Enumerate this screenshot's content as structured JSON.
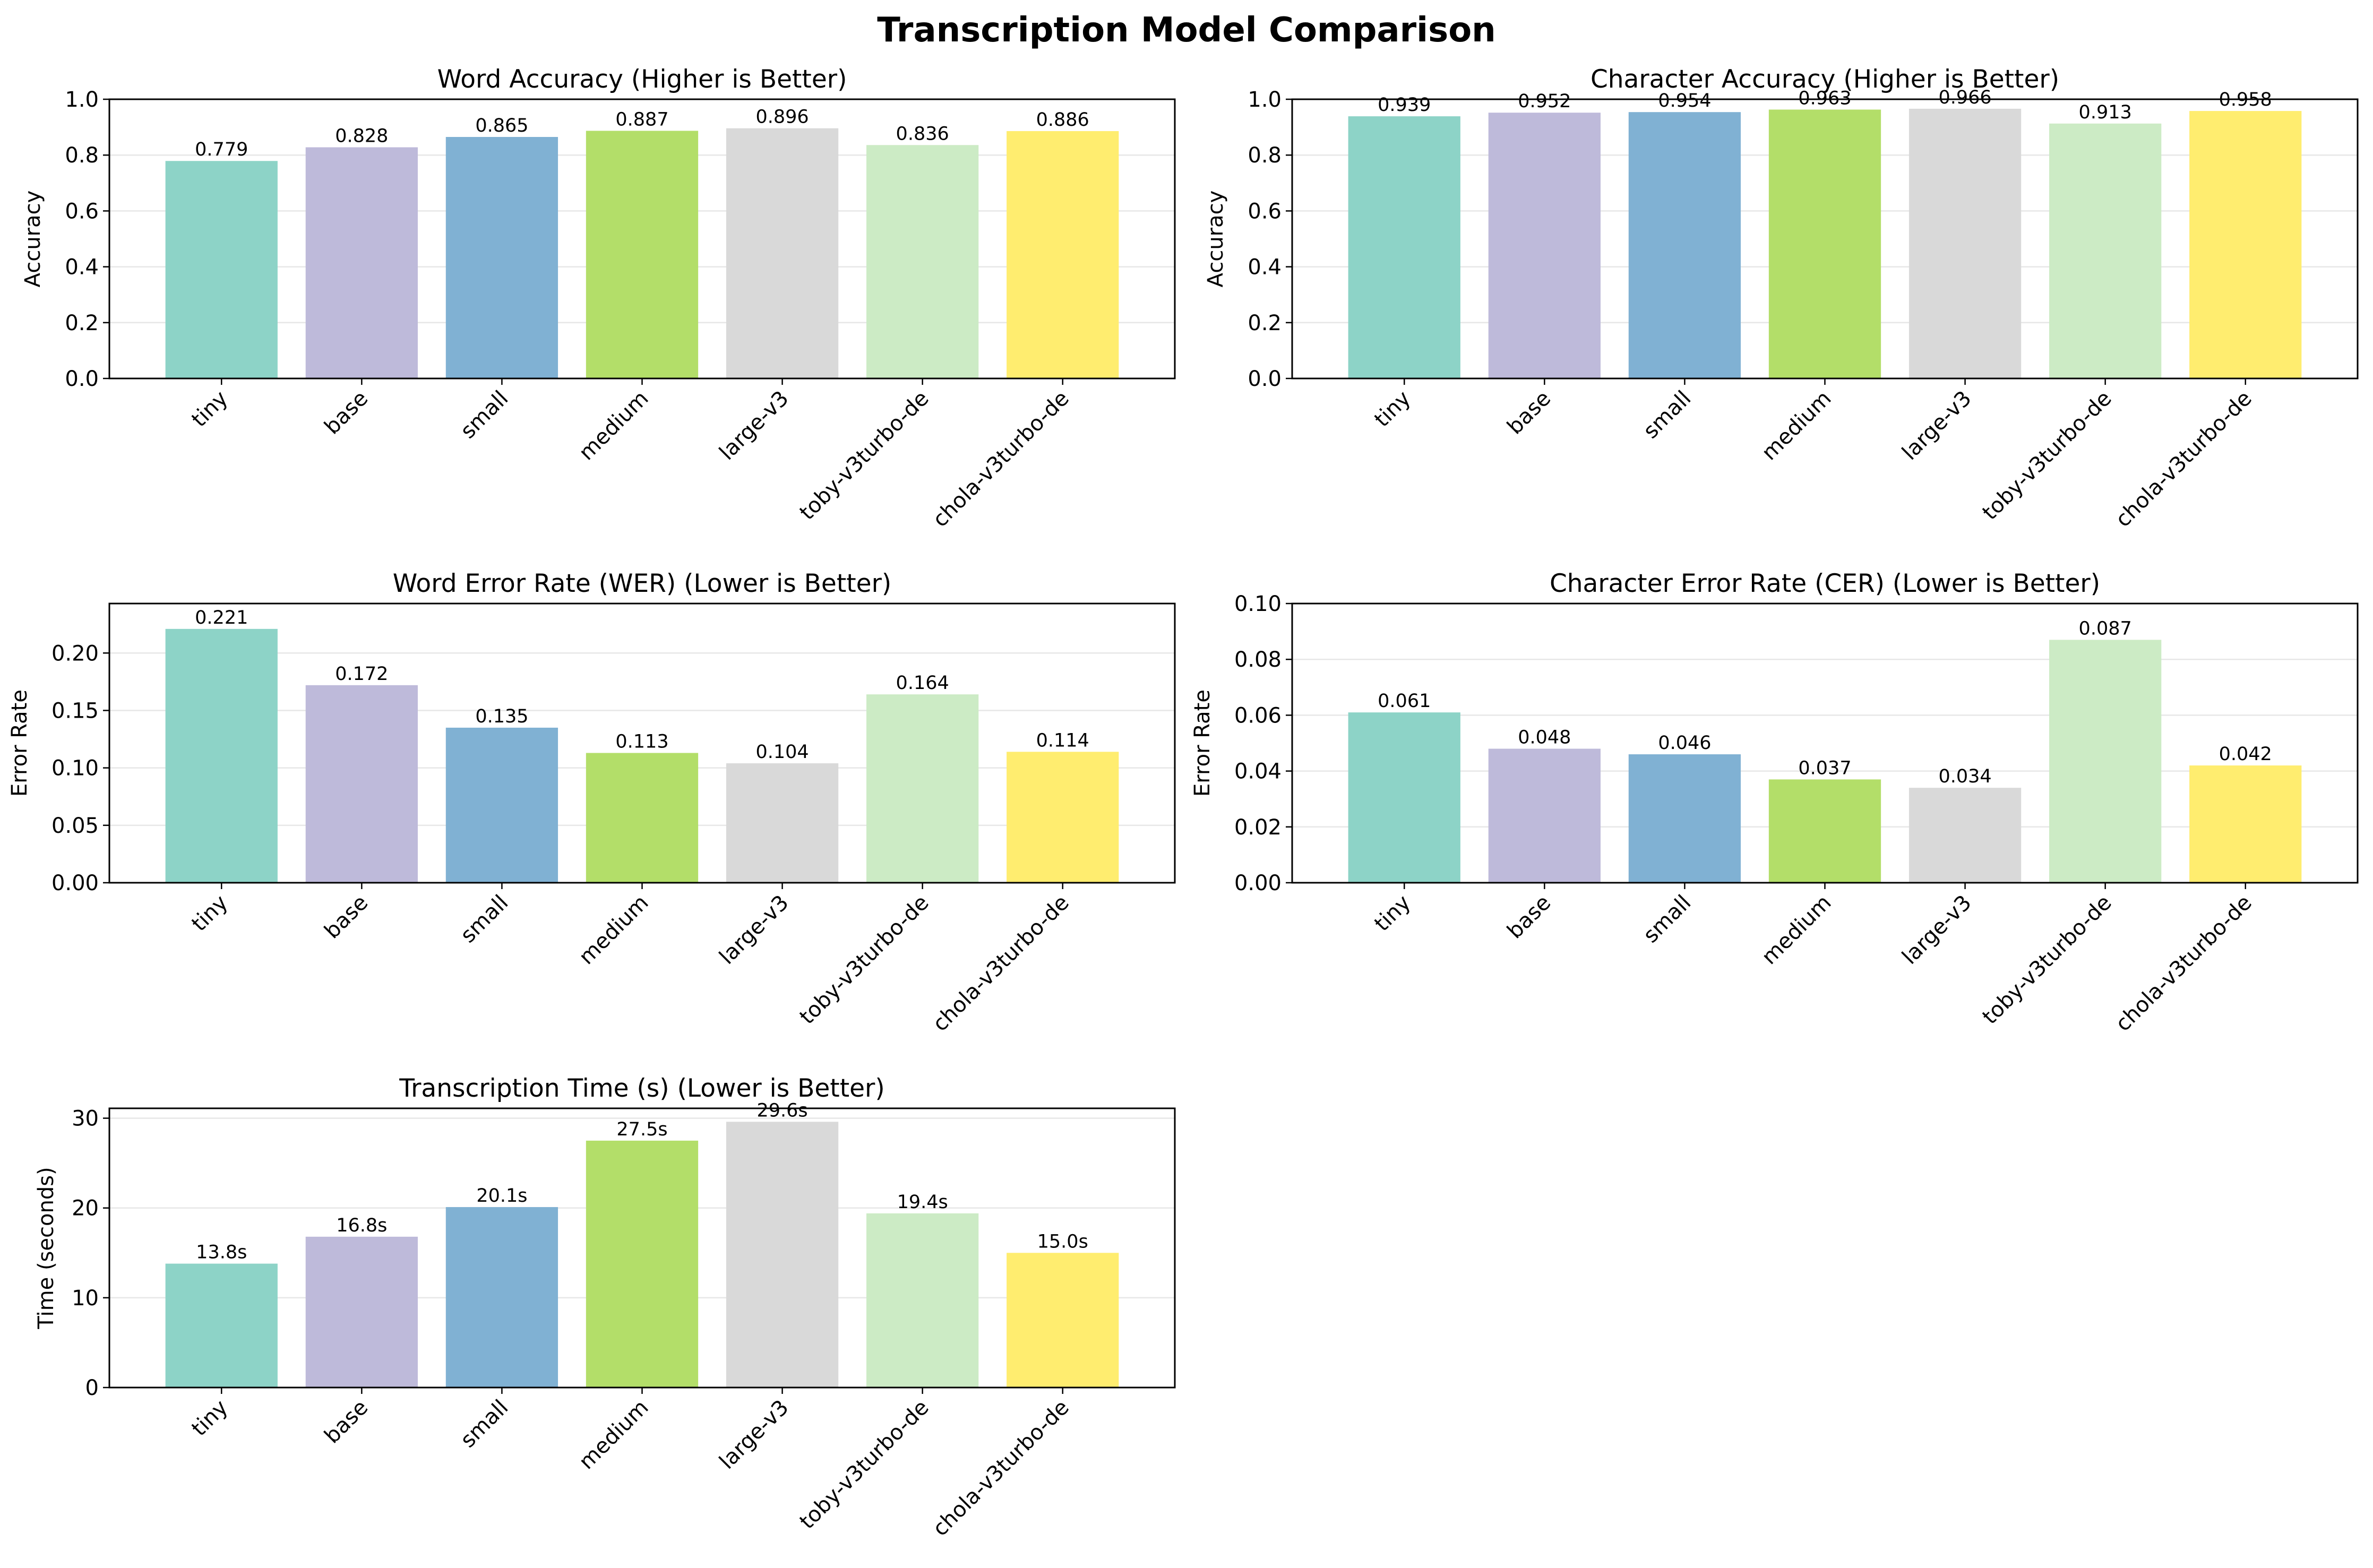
{
  "figure_title": "Transcription Model Comparison",
  "chart_data": [
    {
      "type": "bar",
      "title": "Word Accuracy (Higher is Better)",
      "xlabel": "",
      "ylabel": "Accuracy",
      "categories": [
        "tiny",
        "base",
        "small",
        "medium",
        "large-v3",
        "toby-v3turbo-de",
        "chola-v3turbo-de"
      ],
      "values": [
        0.779,
        0.828,
        0.865,
        0.887,
        0.896,
        0.836,
        0.886
      ],
      "value_labels": [
        "0.779",
        "0.828",
        "0.865",
        "0.887",
        "0.896",
        "0.836",
        "0.886"
      ],
      "ylim": [
        0,
        1.0
      ],
      "yticks": [
        0.0,
        0.2,
        0.4,
        0.6,
        0.8,
        1.0
      ],
      "ytick_labels": [
        "0.0",
        "0.2",
        "0.4",
        "0.6",
        "0.8",
        "1.0"
      ],
      "grid": "y"
    },
    {
      "type": "bar",
      "title": "Character Accuracy (Higher is Better)",
      "xlabel": "",
      "ylabel": "Accuracy",
      "categories": [
        "tiny",
        "base",
        "small",
        "medium",
        "large-v3",
        "toby-v3turbo-de",
        "chola-v3turbo-de"
      ],
      "values": [
        0.939,
        0.952,
        0.954,
        0.963,
        0.966,
        0.913,
        0.958
      ],
      "value_labels": [
        "0.939",
        "0.952",
        "0.954",
        "0.963",
        "0.966",
        "0.913",
        "0.958"
      ],
      "ylim": [
        0,
        1.0
      ],
      "yticks": [
        0.0,
        0.2,
        0.4,
        0.6,
        0.8,
        1.0
      ],
      "ytick_labels": [
        "0.0",
        "0.2",
        "0.4",
        "0.6",
        "0.8",
        "1.0"
      ],
      "grid": "y"
    },
    {
      "type": "bar",
      "title": "Word Error Rate (WER) (Lower is Better)",
      "xlabel": "",
      "ylabel": "Error Rate",
      "categories": [
        "tiny",
        "base",
        "small",
        "medium",
        "large-v3",
        "toby-v3turbo-de",
        "chola-v3turbo-de"
      ],
      "values": [
        0.221,
        0.172,
        0.135,
        0.113,
        0.104,
        0.164,
        0.114
      ],
      "value_labels": [
        "0.221",
        "0.172",
        "0.135",
        "0.113",
        "0.104",
        "0.164",
        "0.114"
      ],
      "ylim": [
        0,
        0.2431
      ],
      "yticks": [
        0.0,
        0.05,
        0.1,
        0.15,
        0.2
      ],
      "ytick_labels": [
        "0.00",
        "0.05",
        "0.10",
        "0.15",
        "0.20"
      ],
      "grid": "y"
    },
    {
      "type": "bar",
      "title": "Character Error Rate (CER) (Lower is Better)",
      "xlabel": "",
      "ylabel": "Error Rate",
      "categories": [
        "tiny",
        "base",
        "small",
        "medium",
        "large-v3",
        "toby-v3turbo-de",
        "chola-v3turbo-de"
      ],
      "values": [
        0.061,
        0.048,
        0.046,
        0.037,
        0.034,
        0.087,
        0.042
      ],
      "value_labels": [
        "0.061",
        "0.048",
        "0.046",
        "0.037",
        "0.034",
        "0.087",
        "0.042"
      ],
      "ylim": [
        0,
        0.1
      ],
      "yticks": [
        0.0,
        0.02,
        0.04,
        0.06,
        0.08,
        0.1
      ],
      "ytick_labels": [
        "0.00",
        "0.02",
        "0.04",
        "0.06",
        "0.08",
        "0.10"
      ],
      "grid": "y"
    },
    {
      "type": "bar",
      "title": "Transcription Time (s) (Lower is Better)",
      "xlabel": "",
      "ylabel": "Time (seconds)",
      "categories": [
        "tiny",
        "base",
        "small",
        "medium",
        "large-v3",
        "toby-v3turbo-de",
        "chola-v3turbo-de"
      ],
      "values": [
        13.8,
        16.8,
        20.1,
        27.5,
        29.6,
        19.4,
        15.0
      ],
      "value_labels": [
        "13.8s",
        "16.8s",
        "20.1s",
        "27.5s",
        "29.6s",
        "19.4s",
        "15.0s"
      ],
      "ylim": [
        0,
        31.1
      ],
      "yticks": [
        0,
        10,
        20,
        30
      ],
      "ytick_labels": [
        "0",
        "10",
        "20",
        "30"
      ],
      "grid": "y"
    }
  ],
  "bar_colors": [
    "#8dd3c7",
    "#bebada",
    "#80b1d3",
    "#b3de69",
    "#d9d9d9",
    "#ccebc5",
    "#ffed6f"
  ]
}
